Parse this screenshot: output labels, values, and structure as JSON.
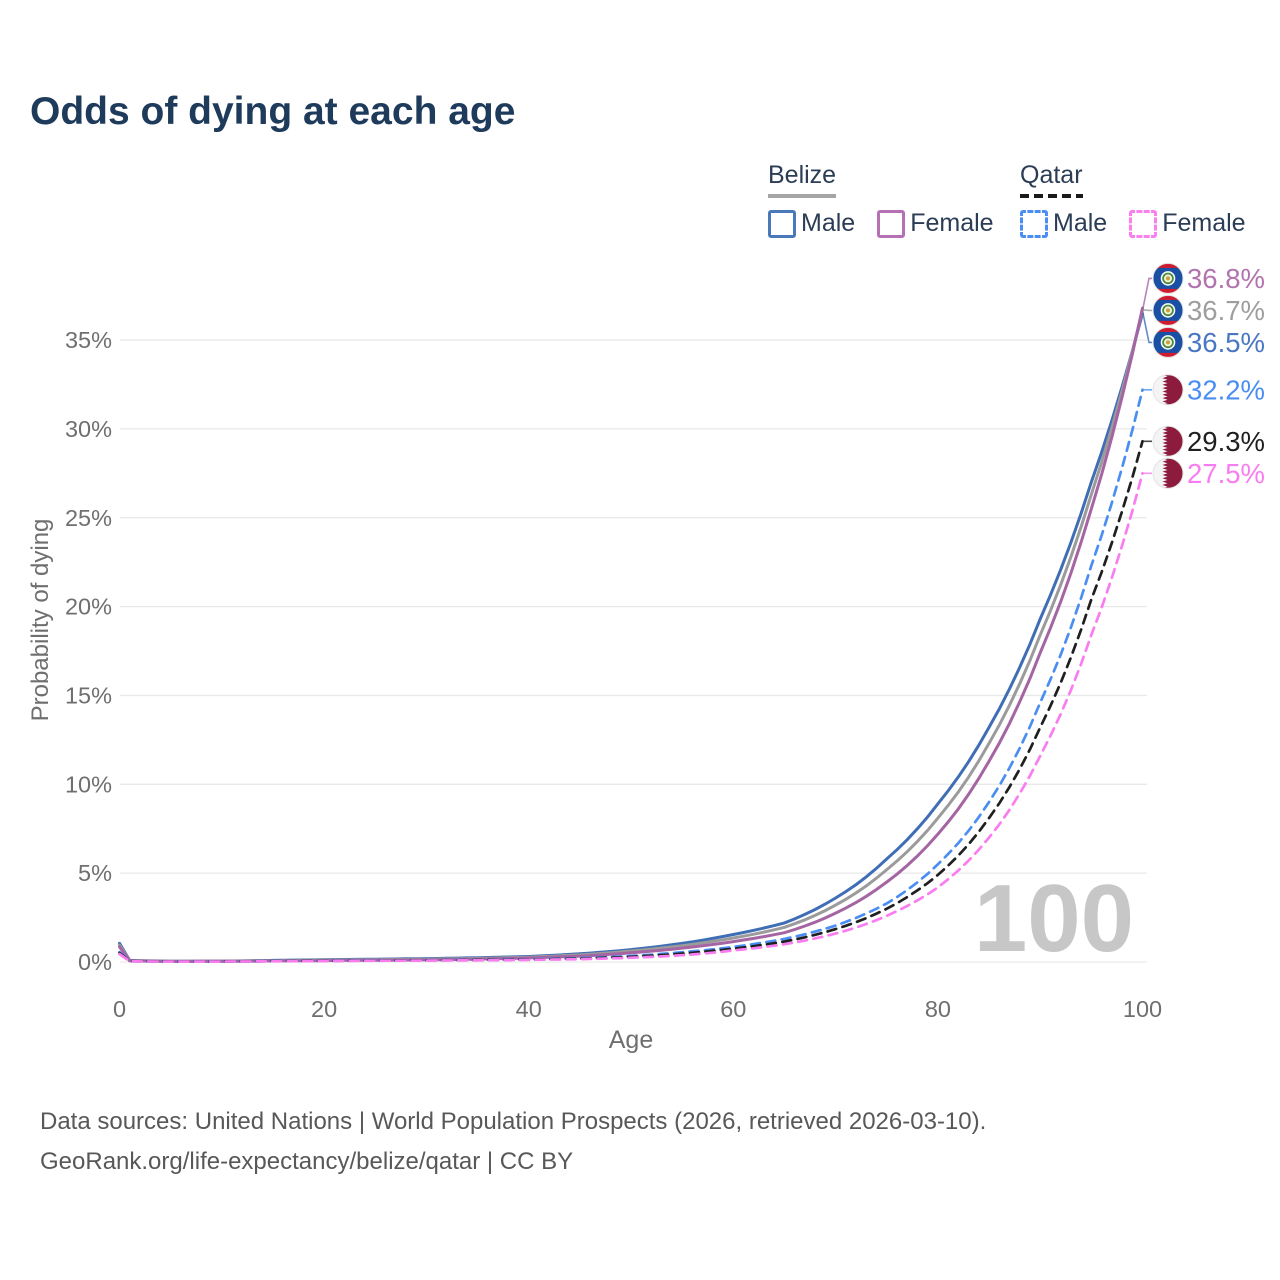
{
  "header": {
    "title": "Odds of dying at each age"
  },
  "legend": {
    "groups": [
      {
        "country": "Belize",
        "line_style": "solid",
        "items": [
          {
            "label": "Male",
            "color": "#4a79ba",
            "dashed": false
          },
          {
            "label": "Female",
            "color": "#b671b4",
            "dashed": false
          }
        ]
      },
      {
        "country": "Qatar",
        "line_style": "dashed",
        "items": [
          {
            "label": "Male",
            "color": "#4a8ef2",
            "dashed": true
          },
          {
            "label": "Female",
            "color": "#fb80ee",
            "dashed": true
          }
        ]
      }
    ]
  },
  "chart_data": {
    "type": "line",
    "title": "Odds of dying at each age",
    "xlabel": "Age",
    "ylabel": "Probability of dying",
    "x_ticks": [
      0,
      20,
      40,
      60,
      80,
      100
    ],
    "y_ticks_percent": [
      0,
      5,
      10,
      15,
      20,
      25,
      30,
      35
    ],
    "xlim": [
      0,
      100
    ],
    "ylim_percent": [
      0,
      39
    ],
    "grid": "horizontal-only",
    "legend_position": "top-right",
    "age_indicator": "100",
    "ages": [
      0,
      1,
      5,
      10,
      15,
      20,
      25,
      30,
      35,
      40,
      45,
      50,
      55,
      60,
      65,
      70,
      75,
      80,
      85,
      90,
      95,
      100
    ],
    "series": [
      {
        "id": "belize-male",
        "name": "Belize — Male",
        "country": "belize",
        "sex": "male",
        "color": "#3f6eb5",
        "label_color": "#4a77c4",
        "dashed": false,
        "end_label": "36.5%",
        "end_value": 36.5,
        "values": [
          1.05,
          0.09,
          0.045,
          0.05,
          0.09,
          0.13,
          0.16,
          0.19,
          0.24,
          0.31,
          0.46,
          0.7,
          1.05,
          1.55,
          2.2,
          3.6,
          5.8,
          8.9,
          13.2,
          19.3,
          27.0,
          36.5
        ]
      },
      {
        "id": "belize-both",
        "name": "Belize — Both sexes",
        "country": "belize",
        "sex": "both",
        "color": "#9b9b9b",
        "label_color": "#9e9ea0",
        "dashed": false,
        "end_label": "36.7%",
        "end_value": 36.7,
        "values": [
          0.95,
          0.08,
          0.04,
          0.045,
          0.075,
          0.1,
          0.13,
          0.16,
          0.2,
          0.27,
          0.4,
          0.62,
          0.92,
          1.35,
          1.95,
          3.2,
          5.2,
          8.1,
          12.3,
          18.4,
          26.3,
          36.7
        ]
      },
      {
        "id": "belize-female",
        "name": "Belize — Female",
        "country": "belize",
        "sex": "female",
        "color": "#a565a3",
        "label_color": "#b273af",
        "dashed": false,
        "end_label": "36.8%",
        "end_value": 36.8,
        "values": [
          0.85,
          0.07,
          0.035,
          0.04,
          0.06,
          0.08,
          0.1,
          0.12,
          0.16,
          0.23,
          0.33,
          0.52,
          0.78,
          1.15,
          1.65,
          2.75,
          4.5,
          7.2,
          11.3,
          17.4,
          25.5,
          36.8
        ]
      },
      {
        "id": "qatar-male",
        "name": "Qatar — Male",
        "country": "qatar",
        "sex": "male",
        "color": "#4a8ef2",
        "label_color": "#4a8ef2",
        "dashed": true,
        "end_label": "32.2%",
        "end_value": 32.2,
        "values": [
          0.55,
          0.05,
          0.025,
          0.03,
          0.05,
          0.07,
          0.09,
          0.105,
          0.125,
          0.16,
          0.22,
          0.34,
          0.55,
          0.85,
          1.3,
          2.05,
          3.3,
          5.5,
          9.0,
          14.6,
          22.3,
          32.2
        ]
      },
      {
        "id": "qatar-both",
        "name": "Qatar — Both sexes",
        "country": "qatar",
        "sex": "both",
        "color": "#1f1f1f",
        "label_color": "#1f1f1f",
        "dashed": true,
        "end_label": "29.3%",
        "end_value": 29.3,
        "values": [
          0.5,
          0.045,
          0.022,
          0.026,
          0.045,
          0.06,
          0.08,
          0.095,
          0.11,
          0.14,
          0.19,
          0.29,
          0.47,
          0.75,
          1.15,
          1.85,
          3.0,
          4.9,
          8.1,
          13.2,
          20.4,
          29.3
        ]
      },
      {
        "id": "qatar-female",
        "name": "Qatar — Female",
        "country": "qatar",
        "sex": "female",
        "color": "#f97df0",
        "label_color": "#f97df0",
        "dashed": true,
        "end_label": "27.5%",
        "end_value": 27.5,
        "values": [
          0.45,
          0.04,
          0.02,
          0.023,
          0.04,
          0.05,
          0.07,
          0.08,
          0.095,
          0.12,
          0.16,
          0.24,
          0.38,
          0.65,
          1.0,
          1.6,
          2.6,
          4.2,
          7.0,
          11.6,
          18.4,
          27.5
        ]
      }
    ]
  },
  "footer": {
    "line1": "Data sources: United Nations | World Population Prospects (2026, retrieved 2026-03-10).",
    "line2": "GeoRank.org/life-expectancy/belize/qatar | CC BY"
  }
}
